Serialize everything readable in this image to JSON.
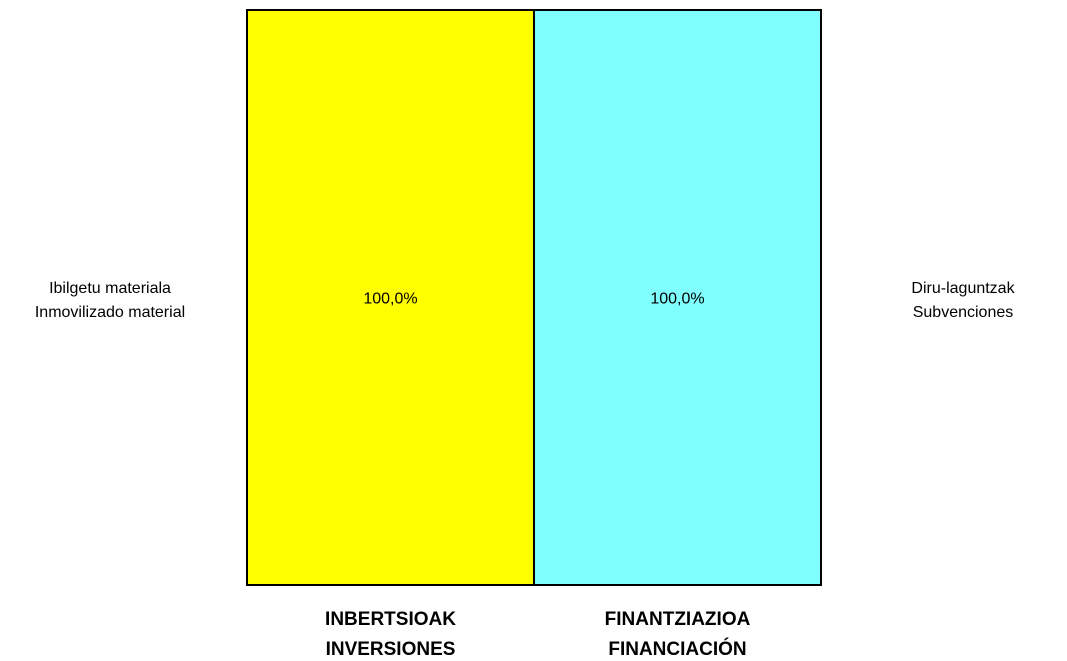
{
  "chart_data": {
    "type": "stacked_bar",
    "categories": [
      "INBERTSIOAK\nINVERSIONES",
      "FINANTZIAZIOA\nFINANCIACIÓN"
    ],
    "series": [
      {
        "name": "Ibilgetu materiala\nInmovilizado material",
        "color": "#ffff00",
        "values": [
          100,
          null
        ],
        "value_labels": [
          "100,0%",
          null
        ]
      },
      {
        "name": "Diru-laguntzak\nSubvenciones",
        "color": "#80ffff",
        "values": [
          null,
          100
        ],
        "value_labels": [
          null,
          "100,0%"
        ]
      }
    ],
    "ylim": [
      0,
      100
    ]
  }
}
